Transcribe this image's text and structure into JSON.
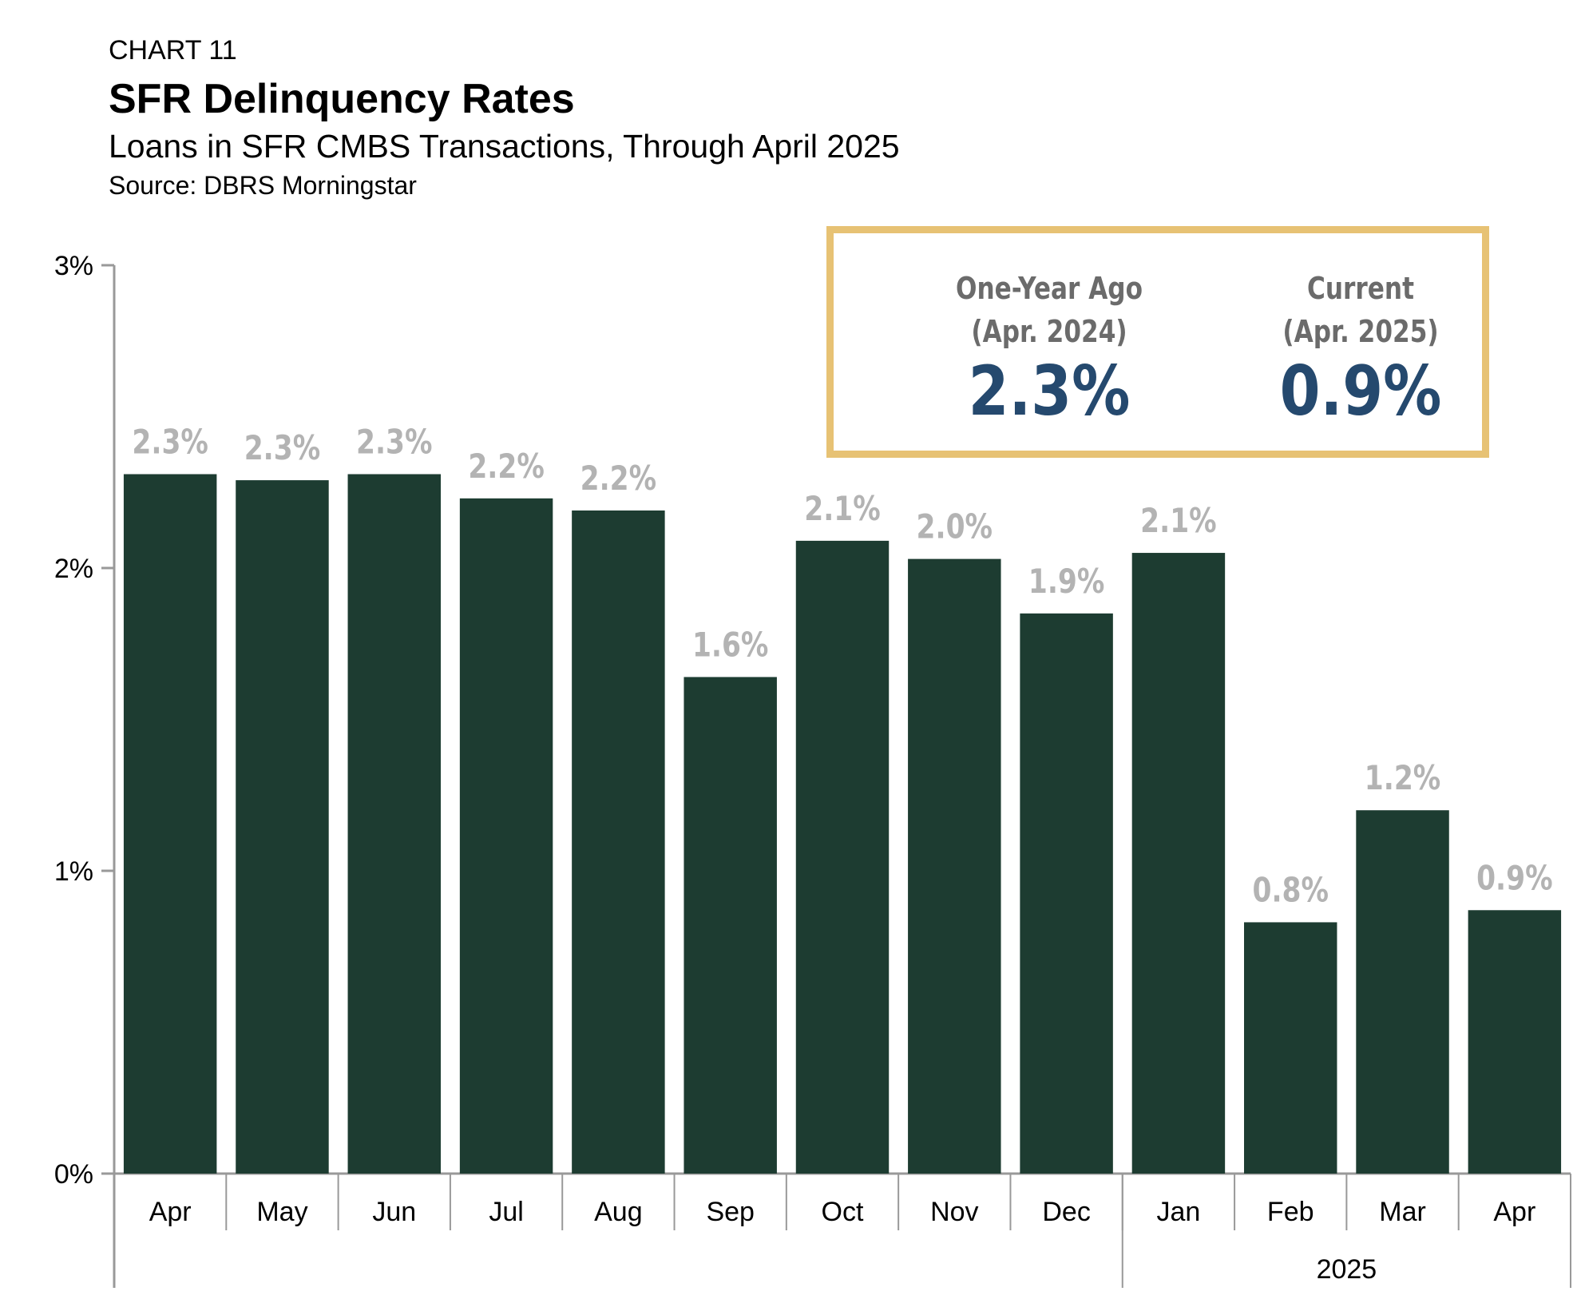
{
  "header": {
    "chart_label": "CHART 11",
    "title": "SFR Delinquency Rates",
    "subtitle": "Loans in SFR CMBS Transactions, Through April 2025",
    "source": "Source: DBRS Morningstar"
  },
  "callout": {
    "left_heading": "One-Year Ago",
    "left_sub": "(Apr. 2024)",
    "left_value": "2.3%",
    "right_heading": "Current",
    "right_sub": "(Apr. 2025)",
    "right_value": "0.9%"
  },
  "chart_data": {
    "type": "bar",
    "categories": [
      "Apr",
      "May",
      "Jun",
      "Jul",
      "Aug",
      "Sep",
      "Oct",
      "Nov",
      "Dec",
      "Jan",
      "Feb",
      "Mar",
      "Apr"
    ],
    "values": [
      2.31,
      2.29,
      2.31,
      2.23,
      2.19,
      1.64,
      2.09,
      2.03,
      1.85,
      2.05,
      0.83,
      1.2,
      0.87
    ],
    "data_labels": [
      "2.3%",
      "2.3%",
      "2.3%",
      "2.2%",
      "2.2%",
      "1.6%",
      "2.1%",
      "2.0%",
      "1.9%",
      "2.1%",
      "0.8%",
      "1.2%",
      "0.9%"
    ],
    "y_ticks": [
      "0%",
      "1%",
      "2%",
      "3%"
    ],
    "ylim": [
      0,
      3
    ],
    "year_group": {
      "label": "2025",
      "start_index": 9,
      "end_index": 12
    },
    "grid": false,
    "legend": "none",
    "colors": {
      "bar": "#1d3c31",
      "data_label": "#b3b3b3",
      "axis": "#999999"
    }
  }
}
